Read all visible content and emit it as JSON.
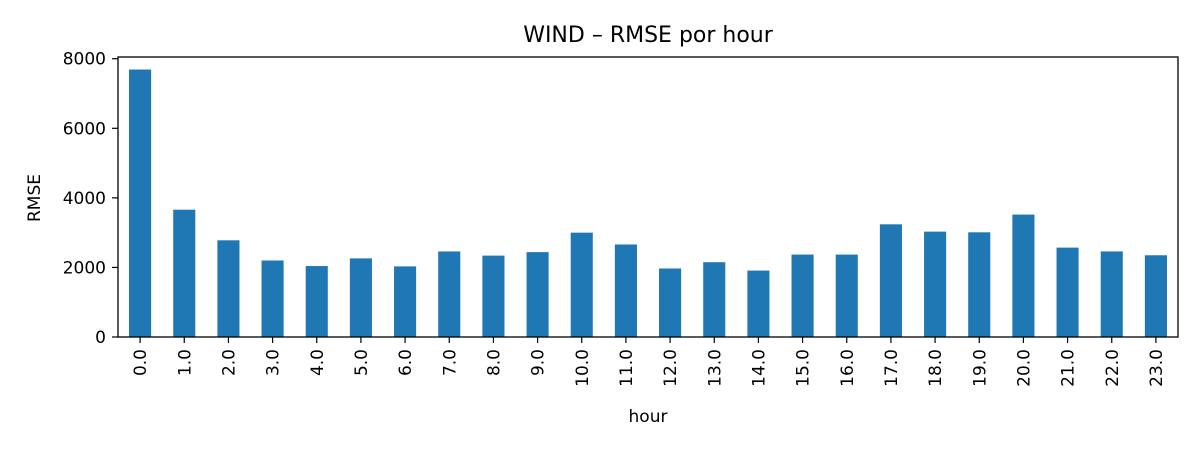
{
  "chart_data": {
    "type": "bar",
    "title": "WIND – RMSE por hour",
    "xlabel": "hour",
    "ylabel": "RMSE",
    "categories": [
      "0.0",
      "1.0",
      "2.0",
      "3.0",
      "4.0",
      "5.0",
      "6.0",
      "7.0",
      "8.0",
      "9.0",
      "10.0",
      "11.0",
      "12.0",
      "13.0",
      "14.0",
      "15.0",
      "16.0",
      "17.0",
      "18.0",
      "19.0",
      "20.0",
      "21.0",
      "22.0",
      "23.0"
    ],
    "values": [
      7690,
      3660,
      2780,
      2200,
      2040,
      2260,
      2030,
      2460,
      2340,
      2440,
      3000,
      2660,
      1970,
      2150,
      1910,
      2370,
      2370,
      3240,
      3030,
      3010,
      3520,
      2570,
      2460,
      2350
    ],
    "ylim": [
      0,
      8050
    ],
    "yticks": [
      0,
      2000,
      4000,
      6000,
      8000
    ],
    "grid": false,
    "bar_color": "#1f77b4"
  }
}
